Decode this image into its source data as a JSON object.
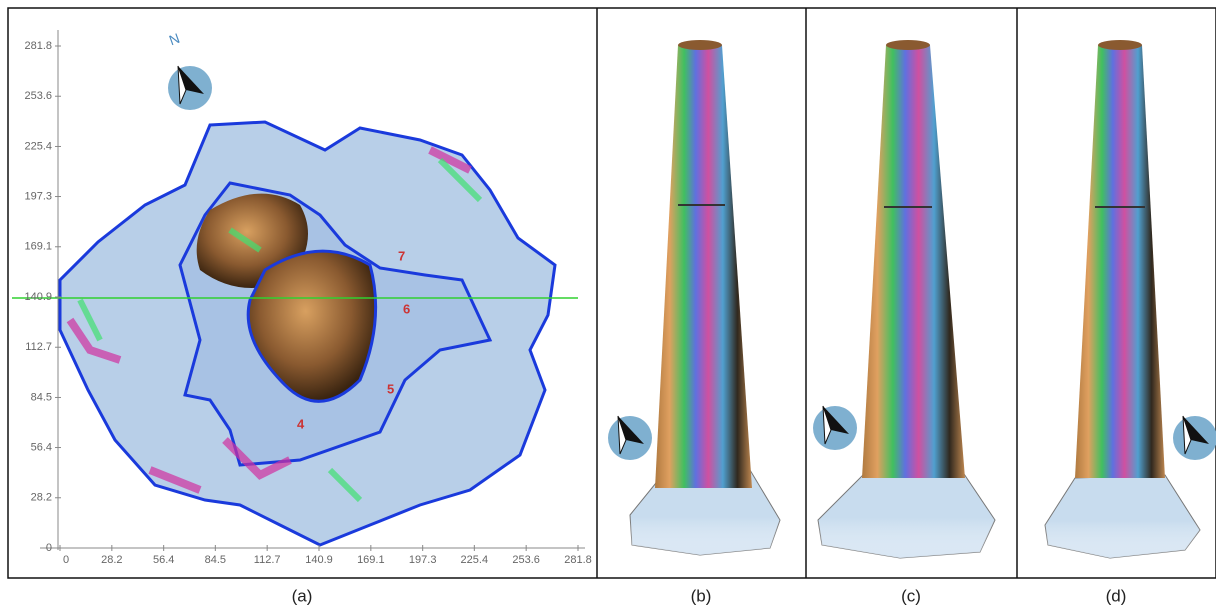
{
  "figure": {
    "plot": {
      "xlim": [
        0,
        281.8
      ],
      "ylim": [
        0,
        281.8
      ],
      "xticks": [
        0,
        28.2,
        56.4,
        84.5,
        112.7,
        140.9,
        169.1,
        197.3,
        225.4,
        253.6,
        281.8
      ],
      "yticks": [
        0,
        28.2,
        56.4,
        84.5,
        112.7,
        140.9,
        169.1,
        197.3,
        225.4,
        253.6,
        281.8
      ],
      "region_labels": [
        "4",
        "5",
        "6",
        "7"
      ],
      "compass": "N"
    },
    "captions": [
      "(a)",
      "(b)",
      "(c)",
      "(d)"
    ]
  }
}
